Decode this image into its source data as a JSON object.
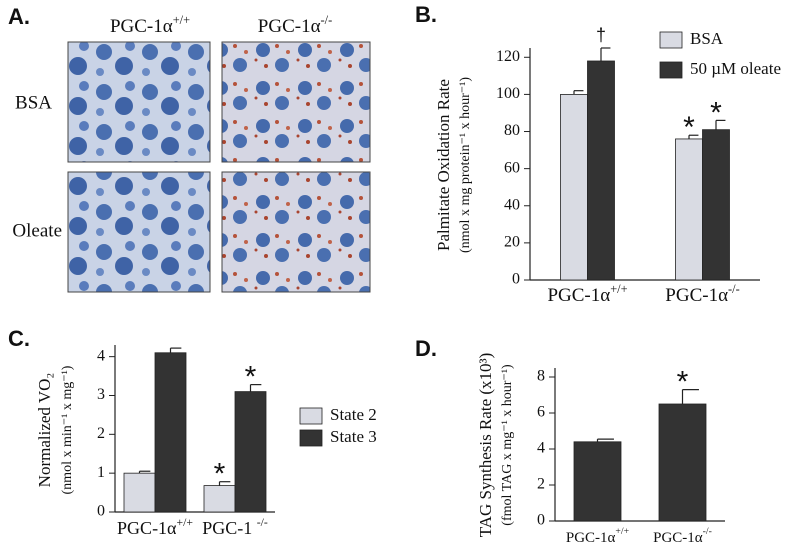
{
  "panel_a": {
    "label": "A.",
    "columns": [
      "PGC-1α+/+",
      "PGC-1α-/-"
    ],
    "rows": [
      "BSA",
      "Oleate"
    ]
  },
  "chart_data": [
    {
      "type": "bar",
      "panel": "B.",
      "ylabel": "Palmitate Oxidation Rate",
      "ylabel_units": "(nmol x mg protein⁻¹ x hour⁻¹)",
      "categories": [
        "PGC-1α+/+",
        "PGC-1α-/-"
      ],
      "series": [
        {
          "name": "BSA",
          "color": "#d9dbe3",
          "values": [
            100,
            76
          ],
          "errors": [
            2,
            2
          ],
          "significance": [
            null,
            "*"
          ]
        },
        {
          "name": "50 µM oleate",
          "color": "#333333",
          "values": [
            118,
            81
          ],
          "errors": [
            7,
            5
          ],
          "significance": [
            "†",
            "*"
          ]
        }
      ],
      "ylim": [
        0,
        125
      ],
      "yticks": [
        0,
        20,
        40,
        60,
        80,
        100,
        120
      ],
      "legend": "top-right"
    },
    {
      "type": "bar",
      "panel": "C.",
      "ylabel": "Normalized VO₂",
      "ylabel_units": "(nmol x min⁻¹ x mg⁻¹)",
      "categories": [
        "PGC-1α+/+",
        "PGC-1    -/-"
      ],
      "series": [
        {
          "name": "State 2",
          "color": "#d9dbe3",
          "values": [
            1.0,
            0.68
          ],
          "errors": [
            0.05,
            0.1
          ],
          "significance": [
            null,
            "*"
          ]
        },
        {
          "name": "State 3",
          "color": "#333333",
          "values": [
            4.1,
            3.1
          ],
          "errors": [
            0.12,
            0.18
          ],
          "significance": [
            null,
            "*"
          ]
        }
      ],
      "ylim": [
        0,
        4.3
      ],
      "yticks": [
        0,
        1,
        2,
        3,
        4
      ],
      "legend": "right"
    },
    {
      "type": "bar",
      "panel": "D.",
      "ylabel": "TAG Synthesis Rate (x10³)",
      "ylabel_units": "(fmol TAG x mg⁻¹ x hour⁻¹)",
      "categories": [
        "PGC-1α+/+",
        "PGC-1α-/-"
      ],
      "series": [
        {
          "color": "#333333",
          "values": [
            4.4,
            6.5
          ],
          "errors": [
            0.15,
            0.8
          ],
          "significance": [
            null,
            "*"
          ]
        }
      ],
      "ylim": [
        0,
        8.5
      ],
      "yticks": [
        0,
        2,
        4,
        6,
        8
      ]
    }
  ]
}
